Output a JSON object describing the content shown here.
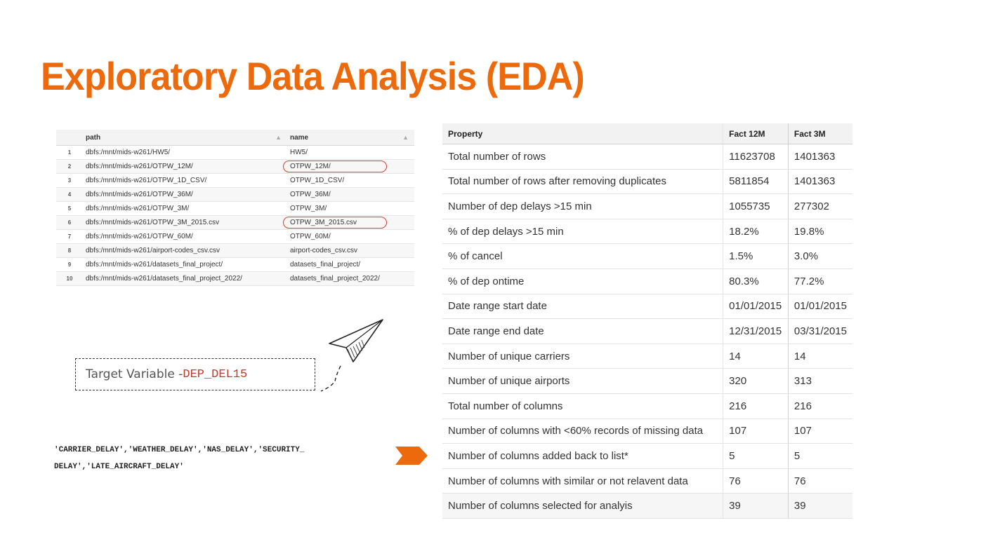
{
  "title": "Exploratory Data Analysis (EDA)",
  "path_table": {
    "columns": [
      "path",
      "name"
    ],
    "rows": [
      {
        "idx": "1",
        "path": "dbfs:/mnt/mids-w261/HW5/",
        "name": "HW5/"
      },
      {
        "idx": "2",
        "path": "dbfs:/mnt/mids-w261/OTPW_12M/",
        "name": "OTPW_12M/"
      },
      {
        "idx": "3",
        "path": "dbfs:/mnt/mids-w261/OTPW_1D_CSV/",
        "name": "OTPW_1D_CSV/"
      },
      {
        "idx": "4",
        "path": "dbfs:/mnt/mids-w261/OTPW_36M/",
        "name": "OTPW_36M/"
      },
      {
        "idx": "5",
        "path": "dbfs:/mnt/mids-w261/OTPW_3M/",
        "name": "OTPW_3M/"
      },
      {
        "idx": "6",
        "path": "dbfs:/mnt/mids-w261/OTPW_3M_2015.csv",
        "name": "OTPW_3M_2015.csv"
      },
      {
        "idx": "7",
        "path": "dbfs:/mnt/mids-w261/OTPW_60M/",
        "name": "OTPW_60M/"
      },
      {
        "idx": "8",
        "path": "dbfs:/mnt/mids-w261/airport-codes_csv.csv",
        "name": "airport-codes_csv.csv"
      },
      {
        "idx": "9",
        "path": "dbfs:/mnt/mids-w261/datasets_final_project/",
        "name": "datasets_final_project/"
      },
      {
        "idx": "10",
        "path": "dbfs:/mnt/mids-w261/datasets_final_project_2022/",
        "name": "datasets_final_project_2022/"
      }
    ]
  },
  "target": {
    "label": "Target Variable - ",
    "variable": "DEP_DEL15"
  },
  "delay_columns": {
    "line1": "'CARRIER_DELAY','WEATHER_DELAY','NAS_DELAY','SECURITY_",
    "line2": "DELAY','LATE_AIRCRAFT_DELAY'"
  },
  "property_table": {
    "header": {
      "property": "Property",
      "c12": "Fact  12M",
      "c3": "Fact  3M"
    },
    "rows": [
      {
        "property": "Total number of rows",
        "v12": "11623708",
        "v3": "1401363"
      },
      {
        "property": "Total number of rows after removing duplicates",
        "v12": "5811854",
        "v3": "1401363"
      },
      {
        "property": "Number of dep delays >15 min",
        "v12": "1055735",
        "v3": "277302"
      },
      {
        "property": "% of dep delays >15 min",
        "v12": "18.2%",
        "v3": "19.8%"
      },
      {
        "property": "% of cancel",
        "v12": "1.5%",
        "v3": "3.0%"
      },
      {
        "property": "% of dep ontime",
        "v12": "80.3%",
        "v3": "77.2%"
      },
      {
        "property": "Date range start date",
        "v12": "01/01/2015",
        "v3": "01/01/2015"
      },
      {
        "property": "Date range end date",
        "v12": "12/31/2015",
        "v3": "03/31/2015"
      },
      {
        "property": "Number of unique carriers",
        "v12": "14",
        "v3": "14"
      },
      {
        "property": "Number of unique airports",
        "v12": "320",
        "v3": "313"
      },
      {
        "property": "Total number of columns",
        "v12": "216",
        "v3": "216"
      },
      {
        "property": "Number of columns with <60% records of missing data",
        "v12": "107",
        "v3": "107"
      },
      {
        "property": "Number of columns added back to list*",
        "v12": "5",
        "v3": "5"
      },
      {
        "property": "Number of columns with similar or not relavent data",
        "v12": "76",
        "v3": "76"
      },
      {
        "property": "Number of columns selected for analyis",
        "v12": "39",
        "v3": "39"
      }
    ]
  },
  "colors": {
    "accent": "#ec6a0c",
    "highlight_circle": "#e03b2f",
    "target_code": "#c0392b"
  },
  "icons": [
    "sort-icon",
    "paper-plane-icon",
    "chevron-right-icon"
  ]
}
